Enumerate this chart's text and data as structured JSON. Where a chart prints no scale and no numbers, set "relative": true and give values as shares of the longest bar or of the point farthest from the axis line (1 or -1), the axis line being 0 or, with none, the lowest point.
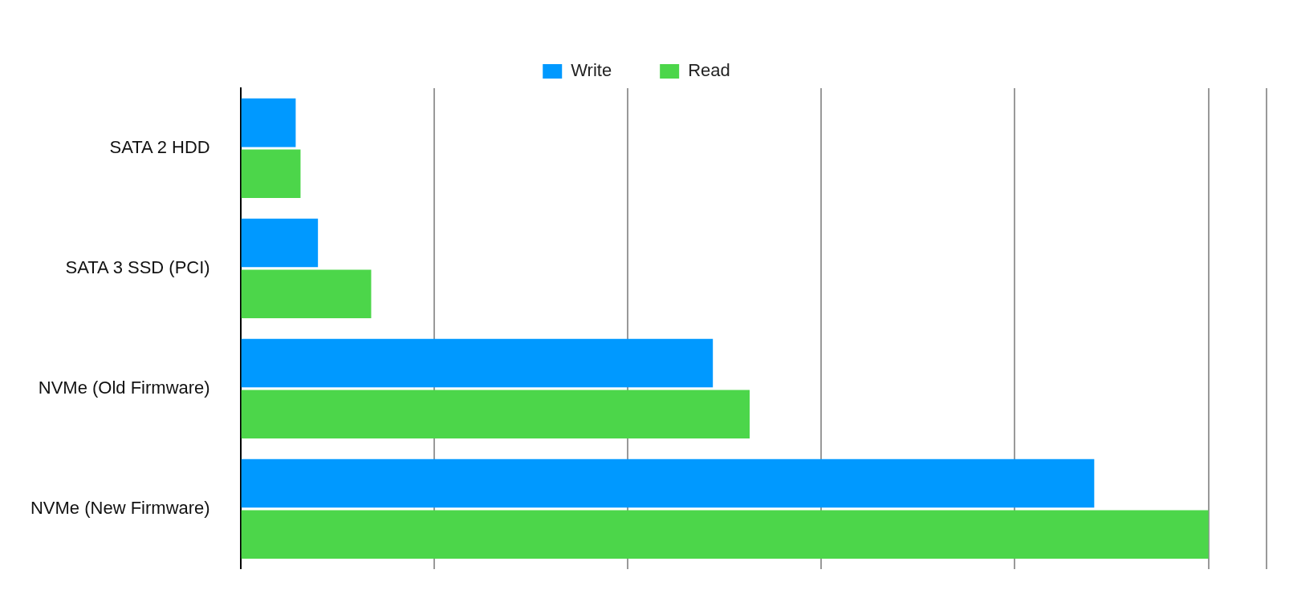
{
  "chart_data": {
    "type": "bar",
    "orientation": "horizontal",
    "relative": true,
    "categories": [
      "SATA 2 HDD",
      "SATA 3 SSD (PCI)",
      "NVMe (Old Firmware)",
      "NVMe (New Firmware)"
    ],
    "series": [
      {
        "name": "Write",
        "color": "#0099ff",
        "values": [
          0.057,
          0.08,
          0.488,
          0.882
        ]
      },
      {
        "name": "Read",
        "color": "#4cd64a",
        "values": [
          0.062,
          0.135,
          0.526,
          1
        ]
      }
    ],
    "grid": "x",
    "legend": "top"
  }
}
